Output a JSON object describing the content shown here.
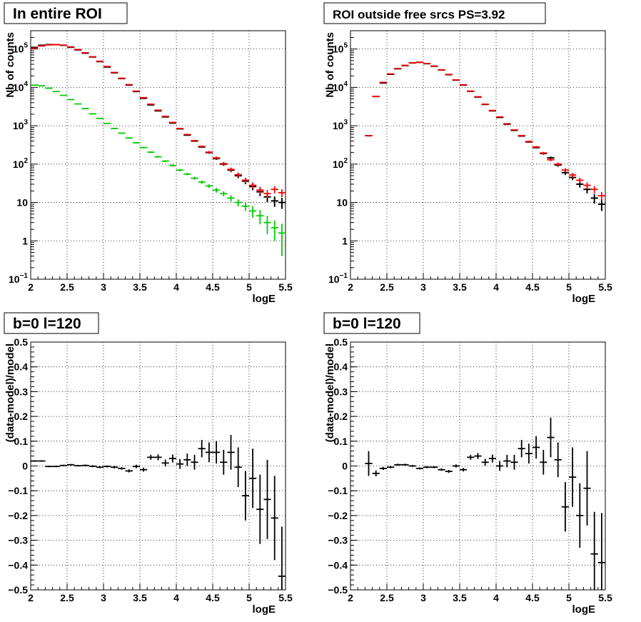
{
  "chart_data": [
    {
      "type": "scatter",
      "title": "In entire ROI",
      "xlabel": "logE",
      "ylabel": "Nb of counts",
      "xlim": [
        2,
        5.5
      ],
      "ylim": [
        0.1,
        300000
      ],
      "yscale": "log",
      "grid": true,
      "xticks": [
        "2",
        "2.5",
        "3",
        "3.5",
        "4",
        "4.5",
        "5",
        "5.5"
      ],
      "yticks": [
        {
          "value": 0.1,
          "base": "10",
          "exp": "−1"
        },
        {
          "value": 1,
          "label": "1"
        },
        {
          "value": 10,
          "label": "10"
        },
        {
          "value": 100,
          "base": "10",
          "exp": "2"
        },
        {
          "value": 1000,
          "base": "10",
          "exp": "3"
        },
        {
          "value": 10000,
          "base": "10",
          "exp": "4"
        },
        {
          "value": 100000,
          "base": "10",
          "exp": "5"
        }
      ],
      "series": [
        {
          "color": "#000000",
          "x": [
            2.05,
            2.15,
            2.25,
            2.35,
            2.45,
            2.55,
            2.65,
            2.75,
            2.85,
            2.95,
            3.05,
            3.15,
            3.25,
            3.35,
            3.45,
            3.55,
            3.65,
            3.75,
            3.85,
            3.95,
            4.05,
            4.15,
            4.25,
            4.35,
            4.45,
            4.55,
            4.65,
            4.75,
            4.85,
            4.95,
            5.05,
            5.15,
            5.25,
            5.35,
            5.45
          ],
          "y": [
            110000,
            125000,
            130000,
            130000,
            125000,
            112000,
            95000,
            78000,
            62000,
            47000,
            34000,
            24000,
            17000,
            11500,
            7800,
            5200,
            3500,
            2450,
            1700,
            1180,
            830,
            570,
            400,
            280,
            200,
            140,
            100,
            70,
            50,
            36,
            26,
            19,
            14,
            11,
            10
          ]
        },
        {
          "color": "#ff0000",
          "x": [
            2.05,
            2.15,
            2.25,
            2.35,
            2.45,
            2.55,
            2.65,
            2.75,
            2.85,
            2.95,
            3.05,
            3.15,
            3.25,
            3.35,
            3.45,
            3.55,
            3.65,
            3.75,
            3.85,
            3.95,
            4.05,
            4.15,
            4.25,
            4.35,
            4.45,
            4.55,
            4.65,
            4.75,
            4.85,
            4.95,
            5.05,
            5.15,
            5.25,
            5.35,
            5.45
          ],
          "y": [
            105000,
            120000,
            128000,
            130000,
            126000,
            114000,
            97000,
            80000,
            63000,
            48000,
            35000,
            24500,
            17300,
            11800,
            8000,
            5400,
            3650,
            2550,
            1760,
            1220,
            850,
            590,
            410,
            290,
            205,
            145,
            103,
            73,
            53,
            38,
            28,
            21,
            17,
            22,
            18
          ]
        },
        {
          "color": "#00cc00",
          "x": [
            2.05,
            2.15,
            2.25,
            2.35,
            2.45,
            2.55,
            2.65,
            2.75,
            2.85,
            2.95,
            3.05,
            3.15,
            3.25,
            3.35,
            3.45,
            3.55,
            3.65,
            3.75,
            3.85,
            3.95,
            4.05,
            4.15,
            4.25,
            4.35,
            4.45,
            4.55,
            4.65,
            4.75,
            4.85,
            4.95,
            5.05,
            5.15,
            5.25,
            5.35,
            5.45
          ],
          "y": [
            11500,
            11000,
            9500,
            7800,
            6200,
            4800,
            3700,
            2800,
            2050,
            1550,
            1150,
            850,
            640,
            480,
            360,
            270,
            205,
            155,
            120,
            92,
            70,
            55,
            43,
            34,
            27,
            21,
            17,
            13,
            10,
            8,
            6,
            4.5,
            3,
            2.2,
            1.6
          ],
          "err_lo": [
            200,
            200,
            180,
            160,
            140,
            120,
            100,
            80,
            60,
            50,
            40,
            30,
            25,
            20,
            15,
            12,
            10,
            8,
            7,
            6,
            5,
            4,
            4,
            3.5,
            3,
            3,
            2.5,
            2.5,
            2,
            2,
            2,
            1.8,
            1.5,
            1.2,
            1.2
          ],
          "err_hi": [
            200,
            200,
            180,
            160,
            140,
            120,
            100,
            80,
            60,
            50,
            40,
            30,
            25,
            20,
            15,
            12,
            10,
            8,
            7,
            6,
            5,
            4,
            4,
            3.5,
            3,
            3,
            2.5,
            2.5,
            2,
            2,
            2,
            1.8,
            1.5,
            1.2,
            1.2
          ]
        }
      ]
    },
    {
      "type": "scatter",
      "title": "ROI outside free srcs PS=3.92",
      "xlabel": "logE",
      "ylabel": "Nb of counts",
      "xlim": [
        2,
        5.5
      ],
      "ylim": [
        0.1,
        300000
      ],
      "yscale": "log",
      "grid": true,
      "xticks": [
        "2",
        "2.5",
        "3",
        "3.5",
        "4",
        "4.5",
        "5",
        "5.5"
      ],
      "yticks": [
        {
          "value": 0.1,
          "base": "10",
          "exp": "−1"
        },
        {
          "value": 1,
          "label": "1"
        },
        {
          "value": 10,
          "label": "10"
        },
        {
          "value": 100,
          "base": "10",
          "exp": "2"
        },
        {
          "value": 1000,
          "base": "10",
          "exp": "3"
        },
        {
          "value": 10000,
          "base": "10",
          "exp": "4"
        },
        {
          "value": 100000,
          "base": "10",
          "exp": "5"
        }
      ],
      "series": [
        {
          "color": "#000000",
          "x": [
            2.25,
            2.35,
            2.45,
            2.55,
            2.65,
            2.75,
            2.85,
            2.95,
            3.05,
            3.15,
            3.25,
            3.35,
            3.45,
            3.55,
            3.65,
            3.75,
            3.85,
            3.95,
            4.05,
            4.15,
            4.25,
            4.35,
            4.45,
            4.55,
            4.65,
            4.75,
            4.85,
            4.95,
            5.05,
            5.15,
            5.25,
            5.35,
            5.45
          ],
          "y": [
            550,
            5800,
            13000,
            22000,
            30500,
            37000,
            43500,
            45000,
            41500,
            35500,
            28500,
            21500,
            15500,
            11500,
            7900,
            5600,
            3600,
            2450,
            1650,
            1100,
            760,
            540,
            380,
            270,
            190,
            145,
            95,
            60,
            45,
            30,
            22,
            13,
            9
          ]
        },
        {
          "color": "#ff0000",
          "x": [
            2.25,
            2.35,
            2.45,
            2.55,
            2.65,
            2.75,
            2.85,
            2.95,
            3.05,
            3.15,
            3.25,
            3.35,
            3.45,
            3.55,
            3.65,
            3.75,
            3.85,
            3.95,
            4.05,
            4.15,
            4.25,
            4.35,
            4.45,
            4.55,
            4.65,
            4.75,
            4.85,
            4.95,
            5.05,
            5.15,
            5.25,
            5.35,
            5.45
          ],
          "y": [
            550,
            5800,
            13500,
            22500,
            31000,
            37500,
            43800,
            45000,
            41800,
            35800,
            28700,
            21800,
            15700,
            11700,
            8000,
            5700,
            3650,
            2500,
            1700,
            1130,
            780,
            555,
            390,
            280,
            195,
            130,
            100,
            70,
            52,
            38,
            28,
            22,
            15
          ]
        }
      ]
    },
    {
      "type": "scatter",
      "title": "b=0 l=120",
      "xlabel": "logE",
      "ylabel": "(data-model)/model",
      "xlim": [
        2,
        5.5
      ],
      "ylim": [
        -0.5,
        0.5
      ],
      "grid": true,
      "xticks": [
        "2",
        "2.5",
        "3",
        "3.5",
        "4",
        "4.5",
        "5",
        "5.5"
      ],
      "yticks": [
        {
          "value": -0.5,
          "label": "−0.5"
        },
        {
          "value": -0.4,
          "label": "−0.4"
        },
        {
          "value": -0.3,
          "label": "−0.3"
        },
        {
          "value": -0.2,
          "label": "−0.2"
        },
        {
          "value": -0.1,
          "label": "−0.1"
        },
        {
          "value": 0,
          "label": "0"
        },
        {
          "value": 0.1,
          "label": "0.1"
        },
        {
          "value": 0.2,
          "label": "0.2"
        },
        {
          "value": 0.3,
          "label": "0.3"
        },
        {
          "value": 0.4,
          "label": "0.4"
        },
        {
          "value": 0.5,
          "label": "0.5"
        }
      ],
      "series": [
        {
          "color": "#000000",
          "x": [
            2.05,
            2.15,
            2.25,
            2.35,
            2.45,
            2.55,
            2.65,
            2.75,
            2.85,
            2.95,
            3.05,
            3.15,
            3.25,
            3.35,
            3.45,
            3.55,
            3.65,
            3.75,
            3.85,
            3.95,
            4.05,
            4.15,
            4.25,
            4.35,
            4.45,
            4.55,
            4.65,
            4.75,
            4.85,
            4.95,
            5.05,
            5.15,
            5.25,
            5.35,
            5.45
          ],
          "y": [
            0.02,
            0.02,
            -0.002,
            -0.002,
            0.002,
            0.005,
            0.001,
            0.002,
            -0.001,
            -0.005,
            -0.002,
            -0.005,
            -0.01,
            -0.02,
            -0.002,
            -0.015,
            0.035,
            0.035,
            0.012,
            0.03,
            0.008,
            0.025,
            0.015,
            0.07,
            0.055,
            0.055,
            0.015,
            0.055,
            -0.005,
            -0.12,
            -0.05,
            -0.175,
            -0.135,
            -0.21,
            -0.445
          ],
          "err": [
            0.003,
            0.003,
            0.003,
            0.003,
            0.003,
            0.003,
            0.003,
            0.004,
            0.004,
            0.004,
            0.004,
            0.005,
            0.005,
            0.006,
            0.007,
            0.008,
            0.01,
            0.012,
            0.014,
            0.016,
            0.02,
            0.025,
            0.03,
            0.035,
            0.04,
            0.045,
            0.05,
            0.07,
            0.08,
            0.1,
            0.12,
            0.14,
            0.16,
            0.17,
            0.2
          ]
        }
      ]
    },
    {
      "type": "scatter",
      "title": "b=0 l=120",
      "xlabel": "logE",
      "ylabel": "(data-model)/model",
      "xlim": [
        2,
        5.5
      ],
      "ylim": [
        -0.5,
        0.5
      ],
      "grid": true,
      "xticks": [
        "2",
        "2.5",
        "3",
        "3.5",
        "4",
        "4.5",
        "5",
        "5.5"
      ],
      "yticks": [
        {
          "value": -0.5,
          "label": "−0.5"
        },
        {
          "value": -0.4,
          "label": "−0.4"
        },
        {
          "value": -0.3,
          "label": "−0.3"
        },
        {
          "value": -0.2,
          "label": "−0.2"
        },
        {
          "value": -0.1,
          "label": "−0.1"
        },
        {
          "value": 0,
          "label": "0"
        },
        {
          "value": 0.1,
          "label": "0.1"
        },
        {
          "value": 0.2,
          "label": "0.2"
        },
        {
          "value": 0.3,
          "label": "0.3"
        },
        {
          "value": 0.4,
          "label": "0.4"
        },
        {
          "value": 0.5,
          "label": "0.5"
        }
      ],
      "series": [
        {
          "color": "#000000",
          "x": [
            2.25,
            2.35,
            2.45,
            2.55,
            2.65,
            2.75,
            2.85,
            2.95,
            3.05,
            3.15,
            3.25,
            3.35,
            3.45,
            3.55,
            3.65,
            3.75,
            3.85,
            3.95,
            4.05,
            4.15,
            4.25,
            4.35,
            4.45,
            4.55,
            4.65,
            4.75,
            4.85,
            4.95,
            5.05,
            5.15,
            5.25,
            5.35,
            5.45
          ],
          "y": [
            0.01,
            -0.03,
            -0.01,
            -0.005,
            0.005,
            0.005,
            0.0,
            -0.01,
            -0.005,
            -0.005,
            -0.015,
            -0.022,
            0.0,
            -0.015,
            0.035,
            0.04,
            0.015,
            0.03,
            0.0,
            0.02,
            0.015,
            0.07,
            0.05,
            0.075,
            0.015,
            0.115,
            0.025,
            -0.165,
            -0.045,
            -0.2,
            -0.09,
            -0.355,
            -0.39
          ],
          "err": [
            0.05,
            0.012,
            0.006,
            0.004,
            0.004,
            0.004,
            0.004,
            0.004,
            0.004,
            0.004,
            0.005,
            0.006,
            0.006,
            0.007,
            0.01,
            0.012,
            0.014,
            0.016,
            0.02,
            0.025,
            0.03,
            0.035,
            0.04,
            0.045,
            0.05,
            0.08,
            0.07,
            0.1,
            0.12,
            0.13,
            0.15,
            0.17,
            0.2
          ]
        }
      ]
    }
  ]
}
